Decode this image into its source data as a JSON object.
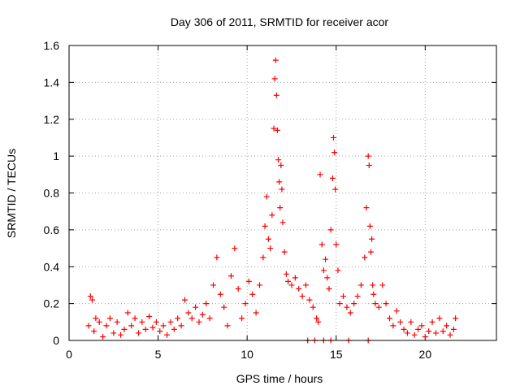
{
  "chart_data": {
    "type": "scatter",
    "title": "Day 306 of 2011, SRMTID for receiver acor",
    "xlabel": "GPS time / hours",
    "ylabel": "SRMTID / TECUs",
    "xlim": [
      0,
      24
    ],
    "ylim": [
      0,
      1.6
    ],
    "xticks": [
      0,
      5,
      10,
      15,
      20
    ],
    "xtick_labels": [
      "0",
      "5",
      "10",
      "15",
      "20"
    ],
    "yticks": [
      0,
      0.2,
      0.4,
      0.6,
      0.8,
      1,
      1.2,
      1.4,
      1.6
    ],
    "ytick_labels": [
      "0",
      "0.2",
      "0.4",
      "0.6",
      "0.8",
      "1",
      "1.2",
      "1.4",
      "1.6"
    ],
    "grid": true,
    "marker": "+",
    "color": "#ff0000",
    "series": [
      {
        "name": "SRMTID",
        "x": [
          1.1,
          1.2,
          1.3,
          1.4,
          1.5,
          1.7,
          1.9,
          2.1,
          2.3,
          2.5,
          2.7,
          2.9,
          3.1,
          3.3,
          3.5,
          3.7,
          3.9,
          4.1,
          4.3,
          4.5,
          4.7,
          4.9,
          5.1,
          5.3,
          5.5,
          5.7,
          5.9,
          6.1,
          6.3,
          6.5,
          6.7,
          6.9,
          7.1,
          7.3,
          7.5,
          7.7,
          7.9,
          8.1,
          8.3,
          8.5,
          8.7,
          8.9,
          9.1,
          9.3,
          9.5,
          9.7,
          9.9,
          10.1,
          10.3,
          10.5,
          10.7,
          10.9,
          11.0,
          11.1,
          11.2,
          11.3,
          11.4,
          11.5,
          11.55,
          11.6,
          11.65,
          11.7,
          11.75,
          11.8,
          11.85,
          11.9,
          11.95,
          12.0,
          12.1,
          12.2,
          12.3,
          12.5,
          12.7,
          12.9,
          13.1,
          13.3,
          13.5,
          13.7,
          13.9,
          14.0,
          14.1,
          14.2,
          14.3,
          14.4,
          14.5,
          14.6,
          14.7,
          14.8,
          14.85,
          14.9,
          14.95,
          15.0,
          15.1,
          15.2,
          15.4,
          15.6,
          15.8,
          16.0,
          16.2,
          16.4,
          16.6,
          16.7,
          16.8,
          16.85,
          16.9,
          16.95,
          17.0,
          17.05,
          17.1,
          17.2,
          17.4,
          17.6,
          17.8,
          18.0,
          18.2,
          18.4,
          18.6,
          18.8,
          19.0,
          19.2,
          19.4,
          19.6,
          19.8,
          20.0,
          20.2,
          20.4,
          20.6,
          20.8,
          21.0,
          21.2,
          21.4,
          21.6,
          21.7,
          13.4,
          13.8,
          14.3,
          14.7,
          15.7,
          16.8
        ],
        "y": [
          0.08,
          0.24,
          0.22,
          0.05,
          0.12,
          0.1,
          0.02,
          0.08,
          0.12,
          0.04,
          0.1,
          0.03,
          0.06,
          0.15,
          0.08,
          0.12,
          0.04,
          0.1,
          0.06,
          0.13,
          0.07,
          0.1,
          0.05,
          0.08,
          0.03,
          0.1,
          0.06,
          0.12,
          0.08,
          0.22,
          0.15,
          0.12,
          0.18,
          0.1,
          0.14,
          0.2,
          0.12,
          0.3,
          0.45,
          0.25,
          0.18,
          0.08,
          0.35,
          0.5,
          0.28,
          0.12,
          0.2,
          0.32,
          0.25,
          0.15,
          0.3,
          0.45,
          0.62,
          0.78,
          0.55,
          0.5,
          0.68,
          1.15,
          1.42,
          1.52,
          1.33,
          1.14,
          0.98,
          0.86,
          0.72,
          0.95,
          0.82,
          0.64,
          0.48,
          0.36,
          0.32,
          0.3,
          0.34,
          0.28,
          0.24,
          0.3,
          0.22,
          0.18,
          0.12,
          0.1,
          0.9,
          0.52,
          0.38,
          0.44,
          0.34,
          0.28,
          0.6,
          0.88,
          1.1,
          1.02,
          0.82,
          0.52,
          0.38,
          0.2,
          0.24,
          0.18,
          0.15,
          0.2,
          0.24,
          0.3,
          0.45,
          0.72,
          1.0,
          0.95,
          0.62,
          0.48,
          0.55,
          0.3,
          0.25,
          0.2,
          0.18,
          0.3,
          0.2,
          0.12,
          0.08,
          0.16,
          0.1,
          0.06,
          0.04,
          0.1,
          0.03,
          0.06,
          0.08,
          0.02,
          0.05,
          0.1,
          0.04,
          0.12,
          0.05,
          0.08,
          0.03,
          0.06,
          0.12,
          0,
          0,
          0,
          0,
          0,
          0
        ]
      }
    ]
  }
}
